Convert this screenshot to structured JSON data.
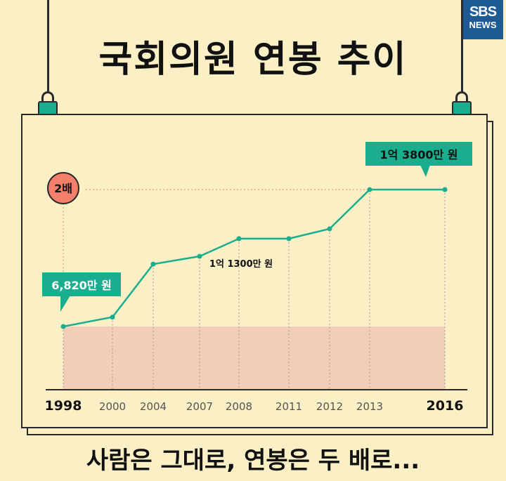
{
  "brand": {
    "line1": "SBS",
    "line2": "NEWS"
  },
  "title": "국회의원 연봉 추이",
  "subtitle": "사람은 그대로, 연봉은 두 배로...",
  "colors": {
    "background": "#FBEFC6",
    "line": "#1AAE8E",
    "callout": "#1AAE8E",
    "fill": "#F2CDB8",
    "badge": "#F47F6B",
    "brand": "#1E5A94"
  },
  "chart_data": {
    "type": "line",
    "x": [
      "1998",
      "2000",
      "2004",
      "2007",
      "2008",
      "2011",
      "2012",
      "2013",
      "2016"
    ],
    "values": [
      6820,
      7300,
      10000,
      10400,
      11300,
      11300,
      11800,
      13800,
      13800
    ],
    "unit": "만 원",
    "ylim": [
      0,
      15000
    ],
    "grid": "vertical dotted lines at each year",
    "baseline_band": 6820,
    "annotations": [
      {
        "text": "6,820만 원",
        "at": "1998",
        "style": "callout"
      },
      {
        "text": "1억 1300만 원",
        "at": "2008",
        "style": "plain"
      },
      {
        "text": "1억 3800만 원",
        "at": "2016",
        "style": "callout"
      },
      {
        "text": "2배",
        "at": "1998",
        "style": "badge"
      }
    ],
    "bold_ticks": [
      "1998",
      "2016"
    ]
  }
}
